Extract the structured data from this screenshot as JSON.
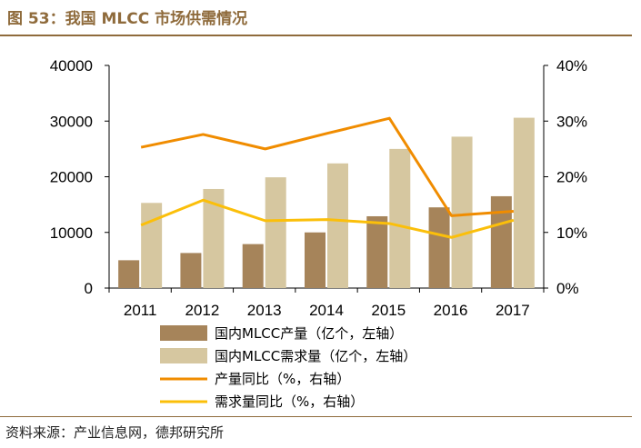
{
  "header": {
    "title": "图 53：我国 MLCC 市场供需情况"
  },
  "footer": {
    "source": "资料来源：产业信息网，德邦研究所"
  },
  "colors": {
    "production_bar": "#a6845a",
    "demand_bar": "#d6c7a0",
    "production_line": "#f08c00",
    "demand_line": "#fbbf0a",
    "accent": "#8f6b3c"
  },
  "chart_data": {
    "type": "bar",
    "categories": [
      "2011",
      "2012",
      "2013",
      "2014",
      "2015",
      "2016",
      "2017"
    ],
    "series": [
      {
        "name": "国内MLCC产量（亿个，左轴）",
        "kind": "bar",
        "axis": "left",
        "values": [
          5000,
          6300,
          7900,
          10000,
          12900,
          14500,
          16500
        ]
      },
      {
        "name": "国内MLCC需求量（亿个，左轴）",
        "kind": "bar",
        "axis": "left",
        "values": [
          15300,
          17800,
          19900,
          22400,
          25000,
          27200,
          30600
        ]
      },
      {
        "name": "产量同比（%，右轴）",
        "kind": "line",
        "axis": "right",
        "values": [
          25.3,
          27.6,
          25.0,
          27.8,
          30.5,
          13.0,
          13.8
        ]
      },
      {
        "name": "需求量同比（%，右轴）",
        "kind": "line",
        "axis": "right",
        "values": [
          11.3,
          15.8,
          12.1,
          12.3,
          11.6,
          9.1,
          12.2
        ]
      }
    ],
    "y_left": {
      "ylim": [
        0,
        40000
      ],
      "ticks": [
        "0",
        "10000",
        "20000",
        "30000",
        "40000"
      ]
    },
    "y_right": {
      "ylim": [
        0,
        40
      ],
      "ticks": [
        "0%",
        "10%",
        "20%",
        "30%",
        "40%"
      ]
    },
    "grid": false,
    "legend_position": "bottom"
  }
}
